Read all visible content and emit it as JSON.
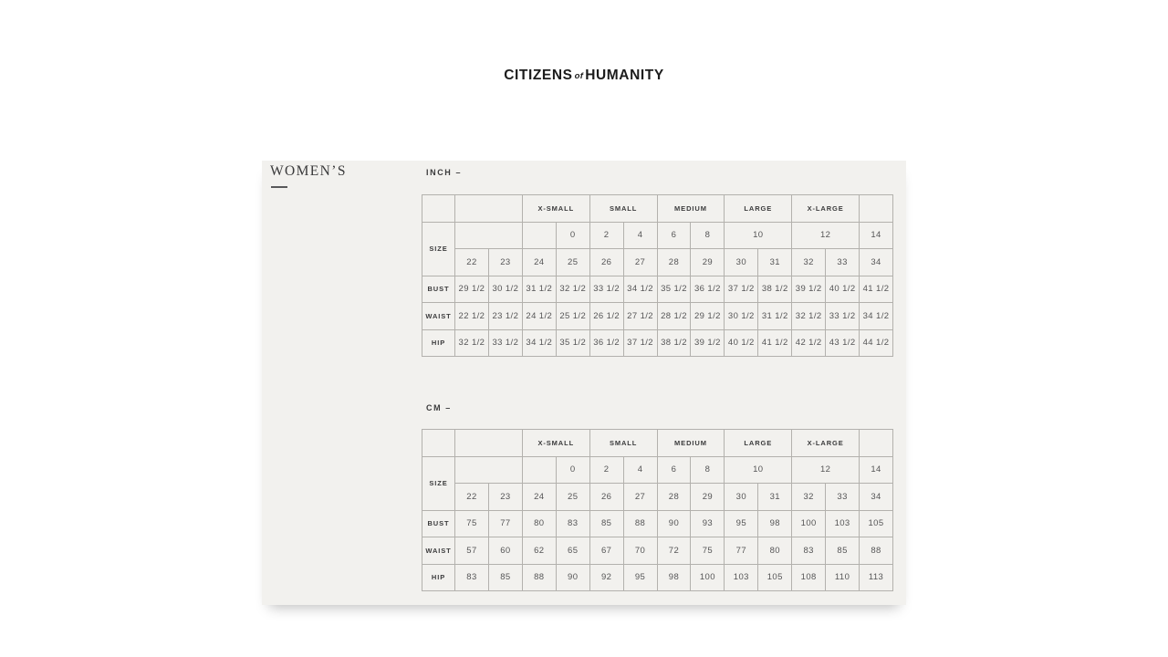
{
  "brand": {
    "logo_citizens": "CITIZENS",
    "logo_of": "of",
    "logo_humanity": "HUMANITY"
  },
  "page": {
    "section_title": "WOMEN’S"
  },
  "tables": {
    "inch": {
      "unit_label": "INCH –",
      "size_label": "SIZE",
      "group_headers": [
        "X-SMALL",
        "SMALL",
        "MEDIUM",
        "LARGE",
        "X-LARGE"
      ],
      "numeric_sizes": [
        "0",
        "2",
        "4",
        "6",
        "8",
        "10",
        "12",
        "14"
      ],
      "denim_sizes": [
        "22",
        "23",
        "24",
        "25",
        "26",
        "27",
        "28",
        "29",
        "30",
        "31",
        "32",
        "33",
        "34"
      ],
      "measurement_rows": [
        {
          "label": "BUST",
          "values": [
            "29 1/2",
            "30 1/2",
            "31 1/2",
            "32 1/2",
            "33 1/2",
            "34 1/2",
            "35 1/2",
            "36 1/2",
            "37 1/2",
            "38 1/2",
            "39 1/2",
            "40 1/2",
            "41 1/2"
          ]
        },
        {
          "label": "WAIST",
          "values": [
            "22 1/2",
            "23 1/2",
            "24 1/2",
            "25 1/2",
            "26 1/2",
            "27 1/2",
            "28 1/2",
            "29 1/2",
            "30 1/2",
            "31 1/2",
            "32 1/2",
            "33 1/2",
            "34 1/2"
          ]
        },
        {
          "label": "HIP",
          "values": [
            "32 1/2",
            "33 1/2",
            "34 1/2",
            "35 1/2",
            "36 1/2",
            "37 1/2",
            "38 1/2",
            "39 1/2",
            "40 1/2",
            "41 1/2",
            "42 1/2",
            "43 1/2",
            "44 1/2"
          ]
        }
      ]
    },
    "cm": {
      "unit_label": "CM –",
      "size_label": "SIZE",
      "group_headers": [
        "X-SMALL",
        "SMALL",
        "MEDIUM",
        "LARGE",
        "X-LARGE"
      ],
      "numeric_sizes": [
        "0",
        "2",
        "4",
        "6",
        "8",
        "10",
        "12",
        "14"
      ],
      "denim_sizes": [
        "22",
        "23",
        "24",
        "25",
        "26",
        "27",
        "28",
        "29",
        "30",
        "31",
        "32",
        "33",
        "34"
      ],
      "measurement_rows": [
        {
          "label": "BUST",
          "values": [
            "75",
            "77",
            "80",
            "83",
            "85",
            "88",
            "90",
            "93",
            "95",
            "98",
            "100",
            "103",
            "105"
          ]
        },
        {
          "label": "WAIST",
          "values": [
            "57",
            "60",
            "62",
            "65",
            "67",
            "70",
            "72",
            "75",
            "77",
            "80",
            "83",
            "85",
            "88"
          ]
        },
        {
          "label": "HIP",
          "values": [
            "83",
            "85",
            "88",
            "90",
            "92",
            "95",
            "98",
            "100",
            "103",
            "105",
            "108",
            "110",
            "113"
          ]
        }
      ]
    }
  },
  "colors": {
    "panel_background": "#f2f1ee",
    "grid_border": "#b3b1ad",
    "text_dark": "#3b3b3c",
    "text_value": "#555556",
    "logo_text": "#1c1c1c"
  }
}
